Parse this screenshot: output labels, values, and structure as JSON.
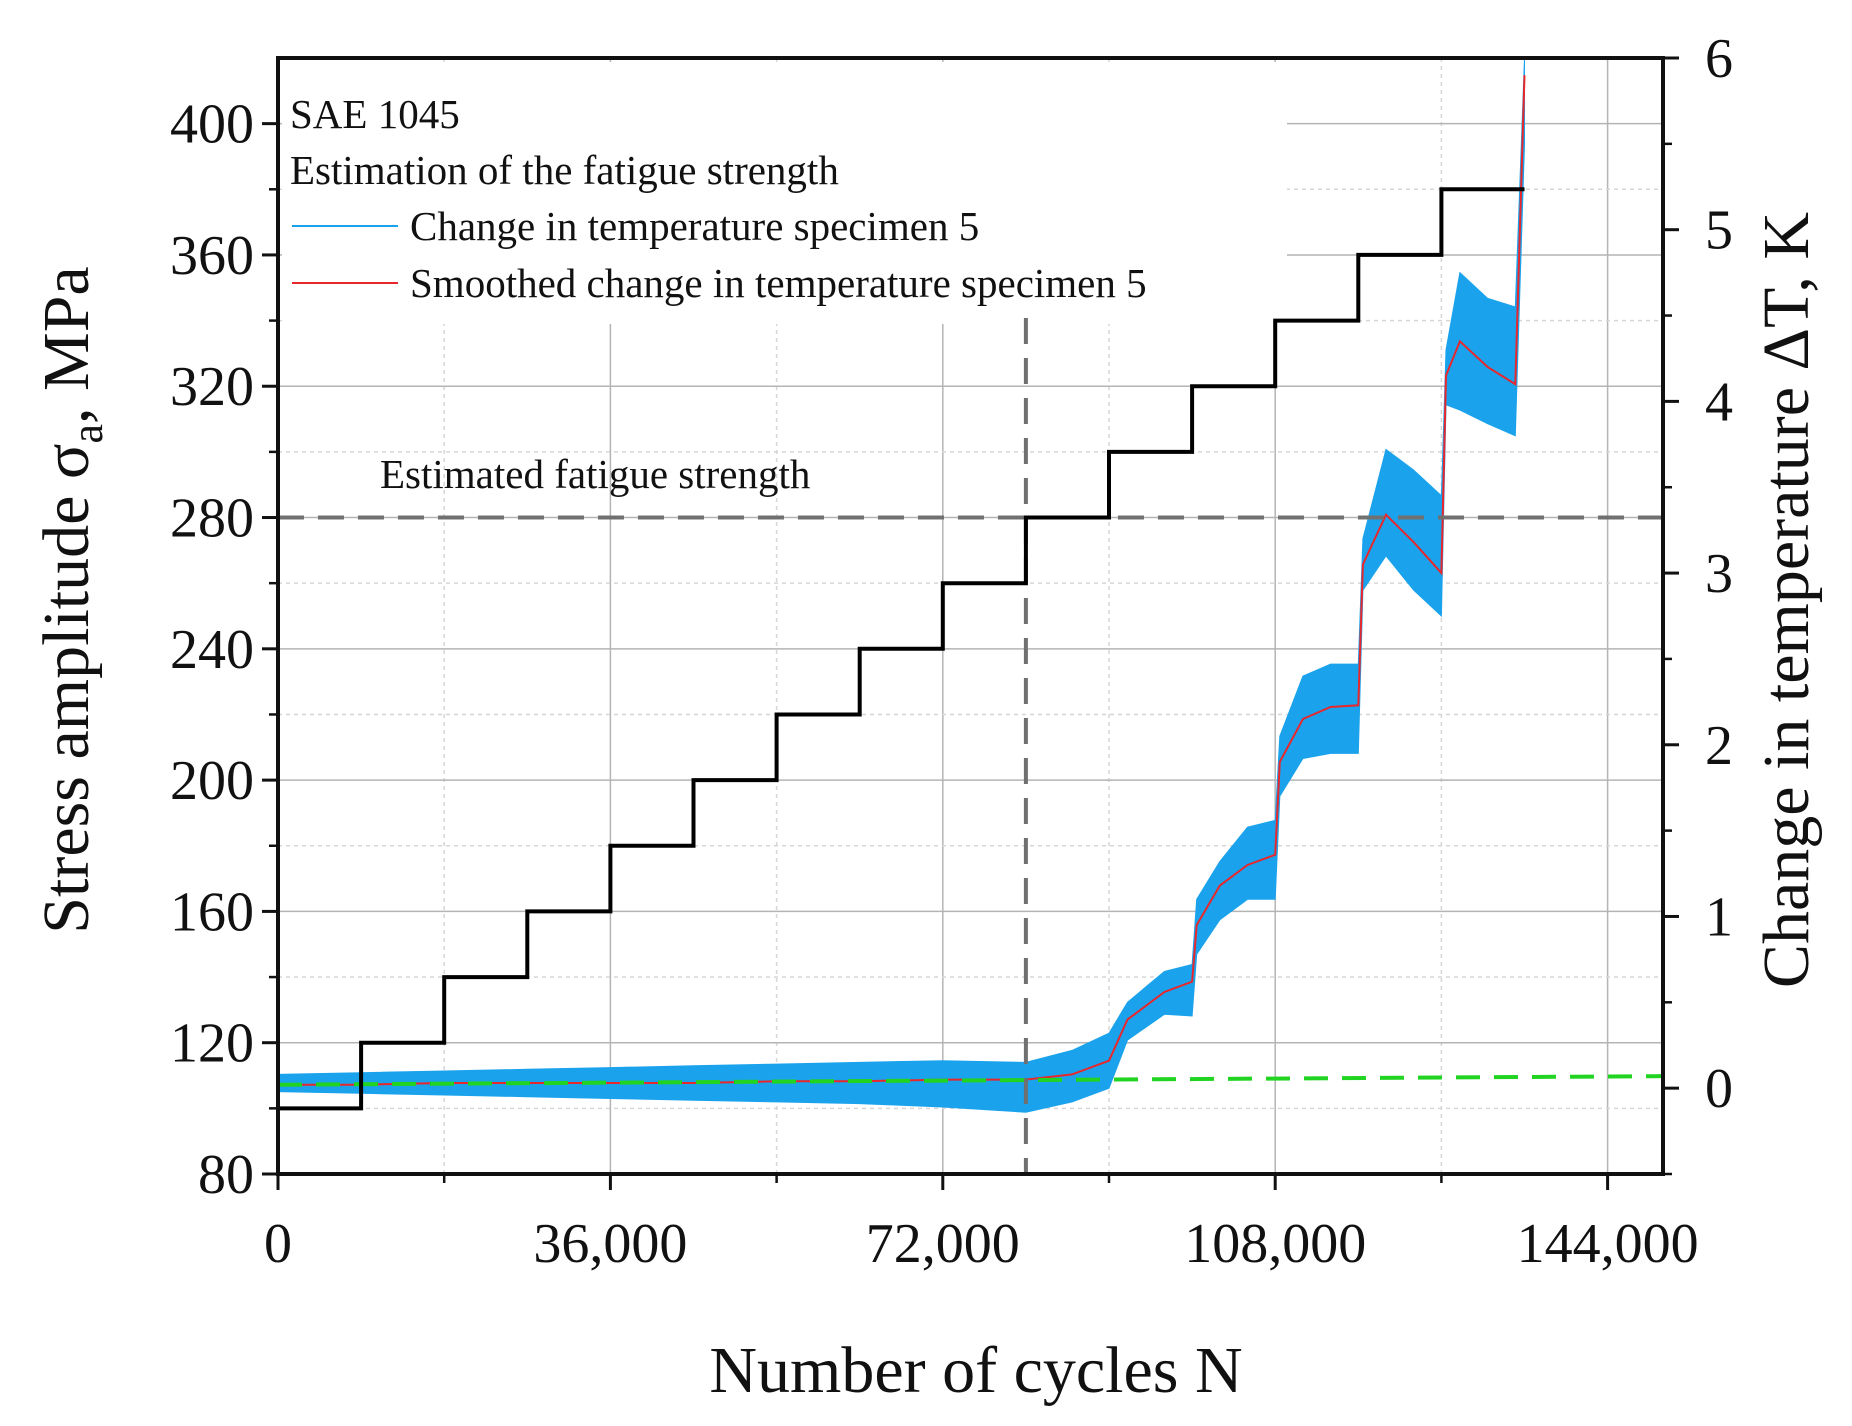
{
  "chart_data": {
    "type": "line",
    "title": "",
    "xlabel": "Number of cycles N",
    "ylabel_main": "Stress amplitude σ",
    "ylabel_sub": "a",
    "ylabel_tail": ", MPa",
    "y2label": "Change in temperature ΔT, K",
    "xlim": [
      0,
      150000
    ],
    "ylim": [
      80,
      420
    ],
    "y2lim": [
      -0.5,
      6
    ],
    "x_ticks": [
      0,
      36000,
      72000,
      108000,
      144000
    ],
    "x_tick_labels": [
      "0",
      "36,000",
      "72,000",
      "108,000",
      "144,000"
    ],
    "y_ticks": [
      80,
      120,
      160,
      200,
      240,
      280,
      320,
      360,
      400
    ],
    "y_tick_labels": [
      "80",
      "120",
      "160",
      "200",
      "240",
      "280",
      "320",
      "360",
      "400"
    ],
    "y2_ticks": [
      0,
      1,
      2,
      3,
      4,
      5,
      6
    ],
    "y2_tick_labels": [
      "0",
      "1",
      "2",
      "3",
      "4",
      "5",
      "6"
    ],
    "grid": true,
    "annotations": {
      "material": "SAE 1045",
      "subtitle": "Estimation of the fatigue strength",
      "fatigue_label": "Estimated fatigue strength"
    },
    "legend": {
      "position": "top-left",
      "entries": [
        {
          "name": "Change in temperature specimen 5",
          "color": "#1aa3ec"
        },
        {
          "name": "Smoothed change in temperature specimen 5",
          "color": "#e8272c"
        }
      ]
    },
    "series": [
      {
        "name": "Stress amplitude steps",
        "axis": "left",
        "color": "#000000",
        "step_width": 9000,
        "levels": [
          100,
          120,
          140,
          160,
          180,
          200,
          220,
          240,
          260,
          280,
          300,
          320,
          340,
          360,
          380
        ],
        "end_x": 135000
      },
      {
        "name": "Change in temperature specimen 5",
        "axis": "right",
        "color": "#1aa3ec",
        "x": [
          0,
          9000,
          18000,
          27000,
          36000,
          45000,
          54000,
          63000,
          72000,
          81000,
          86000,
          90000,
          92000,
          96000,
          99000,
          99500,
          102000,
          105000,
          108000,
          108500,
          111000,
          114000,
          117000,
          117500,
          120000,
          123000,
          126000,
          126500,
          128000,
          131000,
          134000,
          135000
        ],
        "upper": [
          0.08,
          0.09,
          0.1,
          0.11,
          0.12,
          0.13,
          0.14,
          0.15,
          0.16,
          0.15,
          0.22,
          0.32,
          0.5,
          0.68,
          0.72,
          1.1,
          1.32,
          1.52,
          1.56,
          2.05,
          2.4,
          2.47,
          2.47,
          3.2,
          3.72,
          3.6,
          3.45,
          4.3,
          4.75,
          4.6,
          4.55,
          6.0
        ],
        "lower": [
          -0.02,
          -0.03,
          -0.04,
          -0.05,
          -0.06,
          -0.07,
          -0.08,
          -0.09,
          -0.11,
          -0.14,
          -0.08,
          0.0,
          0.28,
          0.43,
          0.42,
          0.78,
          0.98,
          1.1,
          1.1,
          1.7,
          1.92,
          1.95,
          1.95,
          2.9,
          3.1,
          2.9,
          2.75,
          3.98,
          3.95,
          3.87,
          3.8,
          5.5
        ]
      },
      {
        "name": "Smoothed change in temperature specimen 5",
        "axis": "right",
        "color": "#e8272c",
        "x": [
          0,
          9000,
          18000,
          27000,
          36000,
          45000,
          54000,
          63000,
          72000,
          81000,
          86000,
          90000,
          92000,
          96000,
          99000,
          99500,
          102000,
          105000,
          108000,
          108500,
          111000,
          114000,
          117000,
          117500,
          120000,
          123000,
          126000,
          126500,
          128000,
          131000,
          134000,
          135000
        ],
        "y": [
          0.02,
          0.02,
          0.03,
          0.03,
          0.03,
          0.03,
          0.04,
          0.04,
          0.05,
          0.05,
          0.08,
          0.16,
          0.4,
          0.56,
          0.62,
          0.95,
          1.18,
          1.3,
          1.36,
          1.9,
          2.15,
          2.22,
          2.23,
          3.05,
          3.34,
          3.18,
          3.0,
          4.15,
          4.35,
          4.2,
          4.1,
          5.9
        ]
      },
      {
        "name": "Baseline trend",
        "axis": "right",
        "color": "#21d421",
        "dashed": true,
        "x": [
          0,
          150000
        ],
        "y": [
          0.02,
          0.07
        ]
      }
    ],
    "reference_lines": {
      "horizontal_stress": 280,
      "vertical_cycles": 81000
    }
  }
}
